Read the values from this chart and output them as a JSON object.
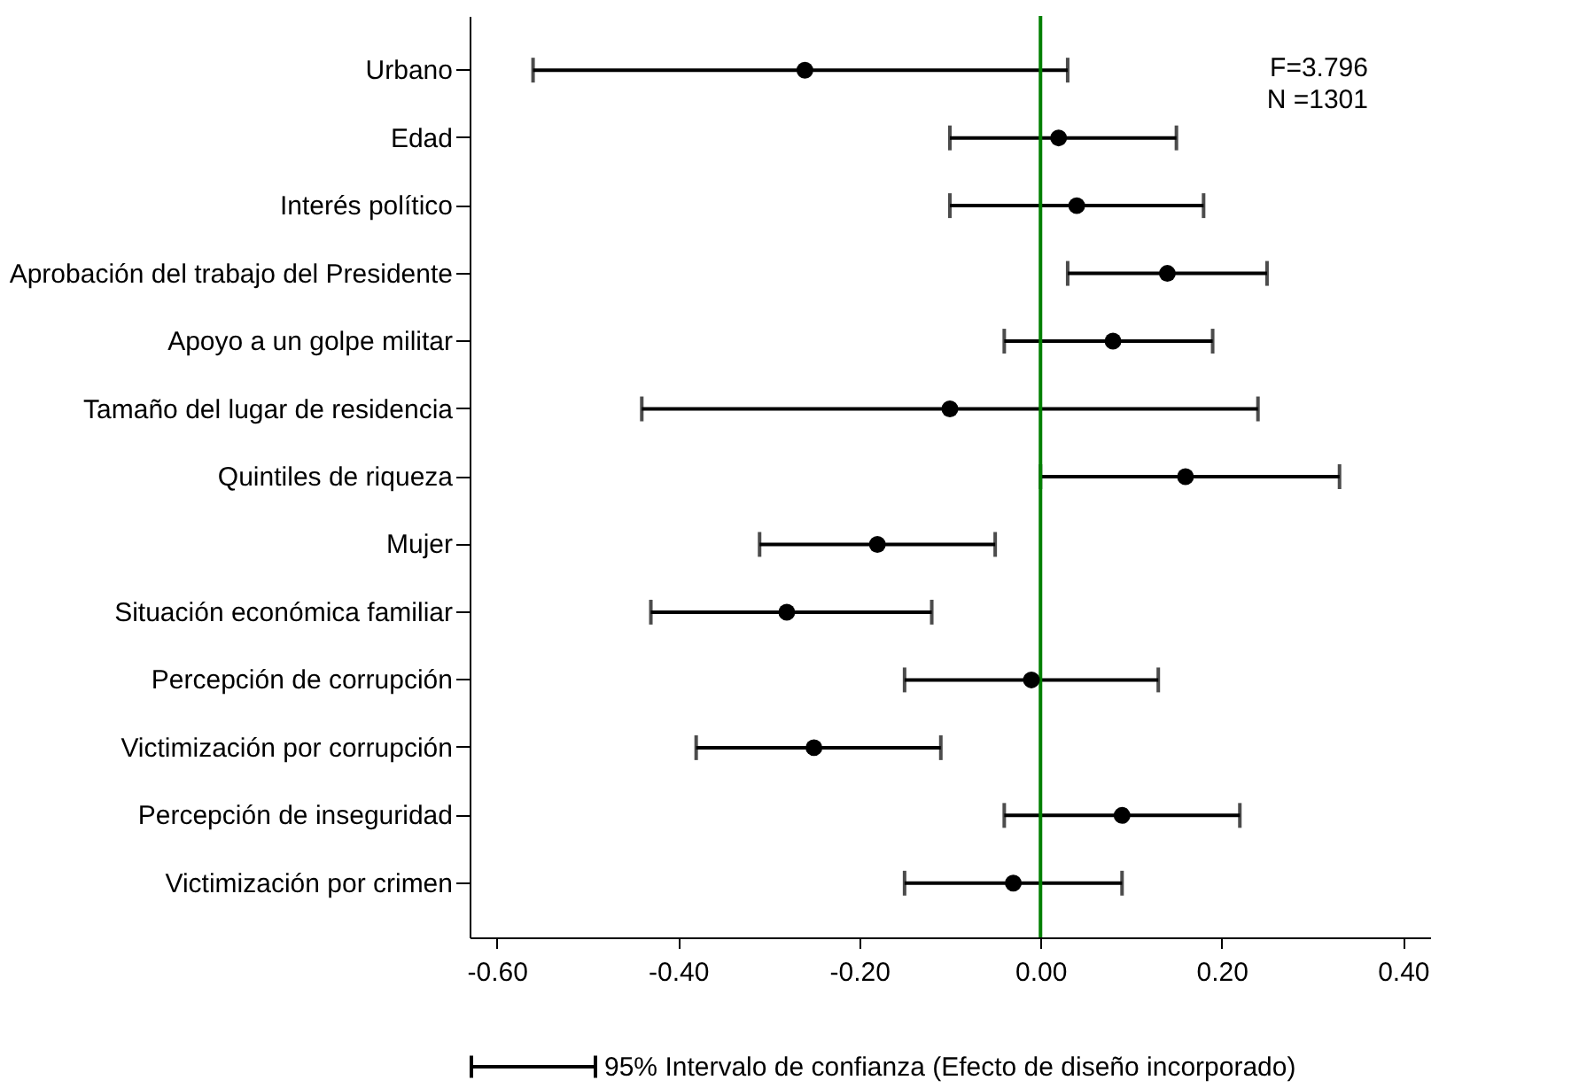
{
  "chart_data": {
    "type": "scatter",
    "orientation": "horizontal",
    "categories": [
      "Urbano",
      "Edad",
      "Interés político",
      "Aprobación del trabajo del Presidente",
      "Apoyo a un golpe militar",
      "Tamaño del lugar de residencia",
      "Quintiles de riqueza",
      "Mujer",
      "Situación económica familiar",
      "Percepción de corrupción",
      "Victimización por corrupción",
      "Percepción de inseguridad",
      "Victimización por crimen"
    ],
    "series": [
      {
        "name": "95% Intervalo de confianza (Efecto de diseño incorporado)",
        "color": "#000000",
        "values": [
          -0.26,
          0.02,
          0.04,
          0.14,
          0.08,
          -0.1,
          0.16,
          -0.18,
          -0.28,
          -0.01,
          -0.25,
          0.09,
          -0.03
        ],
        "errors": [
          [
            -0.56,
            0.03
          ],
          [
            -0.1,
            0.15
          ],
          [
            -0.1,
            0.18
          ],
          [
            0.03,
            0.25
          ],
          [
            -0.04,
            0.19
          ],
          [
            -0.44,
            0.24
          ],
          [
            0.0,
            0.33
          ],
          [
            -0.31,
            -0.05
          ],
          [
            -0.43,
            -0.12
          ],
          [
            -0.15,
            0.13
          ],
          [
            -0.38,
            -0.11
          ],
          [
            -0.04,
            0.22
          ],
          [
            -0.15,
            0.09
          ]
        ]
      }
    ],
    "xlim": [
      -0.63,
      0.43
    ],
    "xticks": [
      {
        "value": -0.6,
        "label": "-0.60"
      },
      {
        "value": -0.4,
        "label": "-0.40"
      },
      {
        "value": -0.2,
        "label": "-0.20"
      },
      {
        "value": 0,
        "label": "0.00"
      },
      {
        "value": 0.2,
        "label": "0.20"
      },
      {
        "value": 0.4,
        "label": "0.40"
      }
    ],
    "ref_lines": [
      {
        "axis": "x",
        "value": 0,
        "color": "#008000"
      }
    ],
    "annotations": [
      "F=3.796",
      "N =1301"
    ],
    "marker": "circle",
    "grid": false,
    "legend": "bottom"
  }
}
